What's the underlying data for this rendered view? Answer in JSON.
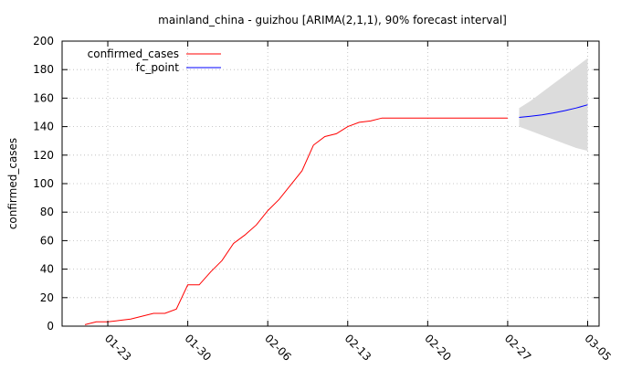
{
  "chart_data": {
    "type": "line",
    "title": "mainland_china - guizhou [ARIMA(2,1,1), 90% forecast interval]",
    "xlabel": "",
    "ylabel": "confirmed_cases",
    "ylim": [
      0,
      200
    ],
    "yticks": [
      0,
      20,
      40,
      60,
      80,
      100,
      120,
      140,
      160,
      180,
      200
    ],
    "xlim": [
      "2020-01-19",
      "2020-03-06"
    ],
    "xticks": [
      {
        "date": "2020-01-23",
        "label": "01-23"
      },
      {
        "date": "2020-01-30",
        "label": "01-30"
      },
      {
        "date": "2020-02-06",
        "label": "02-06"
      },
      {
        "date": "2020-02-13",
        "label": "02-13"
      },
      {
        "date": "2020-02-20",
        "label": "02-20"
      },
      {
        "date": "2020-02-27",
        "label": "02-27"
      },
      {
        "date": "2020-03-05",
        "label": "03-05"
      }
    ],
    "grid": true,
    "legend_position": "top-left",
    "series": [
      {
        "name": "confirmed_cases",
        "color": "#ff0000",
        "points": [
          [
            "2020-01-21",
            1
          ],
          [
            "2020-01-22",
            3
          ],
          [
            "2020-01-23",
            3
          ],
          [
            "2020-01-24",
            4
          ],
          [
            "2020-01-25",
            5
          ],
          [
            "2020-01-26",
            7
          ],
          [
            "2020-01-27",
            9
          ],
          [
            "2020-01-28",
            9
          ],
          [
            "2020-01-29",
            12
          ],
          [
            "2020-01-30",
            29
          ],
          [
            "2020-01-31",
            29
          ],
          [
            "2020-02-01",
            38
          ],
          [
            "2020-02-02",
            46
          ],
          [
            "2020-02-03",
            58
          ],
          [
            "2020-02-04",
            64
          ],
          [
            "2020-02-05",
            71
          ],
          [
            "2020-02-06",
            81
          ],
          [
            "2020-02-07",
            89
          ],
          [
            "2020-02-08",
            99
          ],
          [
            "2020-02-09",
            109
          ],
          [
            "2020-02-10",
            127
          ],
          [
            "2020-02-11",
            133
          ],
          [
            "2020-02-12",
            135
          ],
          [
            "2020-02-13",
            140
          ],
          [
            "2020-02-14",
            143
          ],
          [
            "2020-02-15",
            144
          ],
          [
            "2020-02-16",
            146
          ],
          [
            "2020-02-17",
            146
          ],
          [
            "2020-02-18",
            146
          ],
          [
            "2020-02-19",
            146
          ],
          [
            "2020-02-20",
            146
          ],
          [
            "2020-02-21",
            146
          ],
          [
            "2020-02-22",
            146
          ],
          [
            "2020-02-23",
            146
          ],
          [
            "2020-02-24",
            146
          ],
          [
            "2020-02-25",
            146
          ],
          [
            "2020-02-26",
            146
          ],
          [
            "2020-02-27",
            146
          ]
        ]
      },
      {
        "name": "fc_point",
        "color": "#0000ff",
        "points": [
          [
            "2020-02-28",
            146.5
          ],
          [
            "2020-02-29",
            147.3
          ],
          [
            "2020-03-01",
            148.3
          ],
          [
            "2020-03-02",
            149.6
          ],
          [
            "2020-03-03",
            151.2
          ],
          [
            "2020-03-04",
            153.1
          ],
          [
            "2020-03-05",
            155.3
          ]
        ]
      }
    ],
    "forecast_interval": {
      "color": "#dcdcdc",
      "points": [
        [
          "2020-02-28",
          140,
          153
        ],
        [
          "2020-02-29",
          137,
          158
        ],
        [
          "2020-03-01",
          134,
          164
        ],
        [
          "2020-03-02",
          131,
          170
        ],
        [
          "2020-03-03",
          128,
          176
        ],
        [
          "2020-03-04",
          125,
          182
        ],
        [
          "2020-03-05",
          123,
          188
        ]
      ]
    }
  }
}
